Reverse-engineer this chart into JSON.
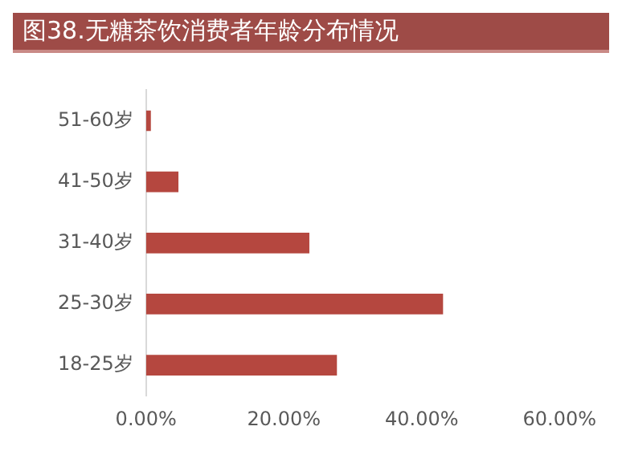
{
  "chart_data": {
    "type": "bar",
    "orientation": "horizontal",
    "title": "图38.无糖茶饮消费者年龄分布情况",
    "categories": [
      "51-60岁",
      "41-50岁",
      "31-40岁",
      "25-30岁",
      "18-25岁"
    ],
    "values": [
      0.7,
      4.7,
      23.7,
      43.1,
      27.7
    ],
    "color": "#b5473f",
    "xlim": [
      0,
      60
    ],
    "xticks": [
      {
        "value": 0,
        "label": "0.00%"
      },
      {
        "value": 20,
        "label": "20.00%"
      },
      {
        "value": 40,
        "label": "40.00%"
      },
      {
        "value": 60,
        "label": "60.00%"
      }
    ],
    "grid": false,
    "legend": false
  }
}
